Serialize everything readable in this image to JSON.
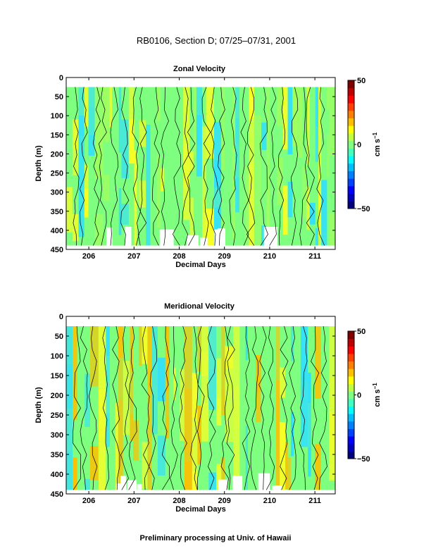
{
  "figure": {
    "title": "RB0106, Section D; 07/25–07/31, 2001",
    "footer": "Preliminary processing at Univ. of Hawaii"
  },
  "chart_data": [
    {
      "type": "heatmap",
      "title": "Zonal Velocity",
      "xlabel": "Decimal Days",
      "ylabel": "Depth (m)",
      "xlim": [
        205.5,
        211.45
      ],
      "ylim": [
        450,
        0
      ],
      "x_ticks": [
        "206",
        "207",
        "208",
        "209",
        "210",
        "211"
      ],
      "x_tick_values": [
        206,
        207,
        208,
        209,
        210,
        211
      ],
      "y_ticks": [
        "0",
        "50",
        "100",
        "150",
        "200",
        "250",
        "300",
        "350",
        "400",
        "450"
      ],
      "y_tick_values": [
        0,
        50,
        100,
        150,
        200,
        250,
        300,
        350,
        400,
        450
      ],
      "data_depth_range": [
        25,
        440
      ],
      "colorbar": {
        "min": -50,
        "max": 50,
        "tick_labels": [
          "50",
          "0",
          "−50"
        ],
        "tick_values": [
          50,
          0,
          -50
        ],
        "label": "cm s",
        "label_superscript": "−1",
        "colors": [
          "#00007f",
          "#0000bf",
          "#0000ff",
          "#0040ff",
          "#0080ff",
          "#00bfff",
          "#00ffff",
          "#40ffbf",
          "#80ff80",
          "#bfff40",
          "#ffff00",
          "#ffbf00",
          "#ff8000",
          "#ff4000",
          "#ff0000",
          "#bf0000",
          "#7f0000"
        ]
      },
      "dominant_colors": [
        "#7fff7f",
        "#9fff60",
        "#30dfff",
        "#ffff20"
      ],
      "contour_level": 0,
      "grid": false
    },
    {
      "type": "heatmap",
      "title": "Meridional Velocity",
      "xlabel": "Decimal Days",
      "ylabel": "Depth (m)",
      "xlim": [
        205.5,
        211.45
      ],
      "ylim": [
        450,
        0
      ],
      "x_ticks": [
        "206",
        "207",
        "208",
        "209",
        "210",
        "211"
      ],
      "x_tick_values": [
        206,
        207,
        208,
        209,
        210,
        211
      ],
      "y_ticks": [
        "0",
        "50",
        "100",
        "150",
        "200",
        "250",
        "300",
        "350",
        "400",
        "450"
      ],
      "y_tick_values": [
        0,
        50,
        100,
        150,
        200,
        250,
        300,
        350,
        400,
        450
      ],
      "data_depth_range": [
        25,
        440
      ],
      "colorbar": {
        "min": -50,
        "max": 50,
        "tick_labels": [
          "50",
          "0",
          "−50"
        ],
        "tick_values": [
          50,
          0,
          -50
        ],
        "label": "cm s",
        "label_superscript": "−1",
        "colors": [
          "#00007f",
          "#0000bf",
          "#0000ff",
          "#0040ff",
          "#0080ff",
          "#00bfff",
          "#00ffff",
          "#40ffbf",
          "#80ff80",
          "#bfff40",
          "#ffff00",
          "#ffbf00",
          "#ff8000",
          "#ff4000",
          "#ff0000",
          "#bf0000",
          "#7f0000"
        ]
      },
      "dominant_colors": [
        "#7fff7f",
        "#ffff20",
        "#30dfff",
        "#ffbf00"
      ],
      "contour_level": 0,
      "grid": false
    }
  ]
}
